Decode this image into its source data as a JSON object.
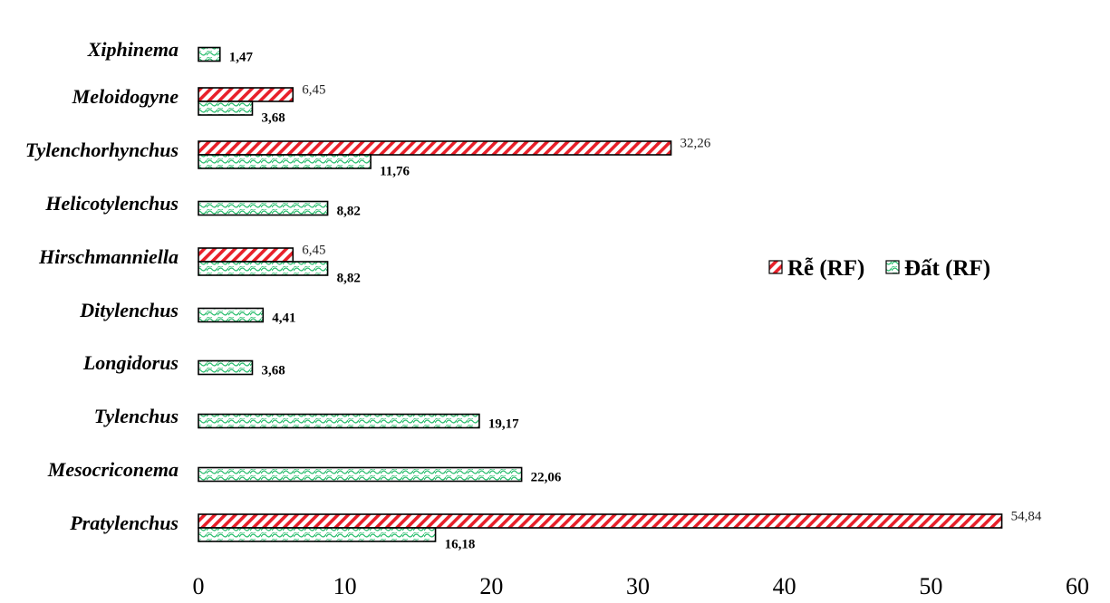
{
  "chart_data": {
    "type": "bar",
    "orientation": "horizontal",
    "categories": [
      "Xiphinema",
      "Meloidogyne",
      "Tylenchorhynchus",
      "Helicotylenchus",
      "Hirschmanniella",
      "Ditylenchus",
      "Longidorus",
      "Tylenchus",
      "Mesocriconema",
      "Pratylenchus"
    ],
    "series": [
      {
        "name": "Rễ (RF)",
        "values": [
          null,
          6.45,
          32.26,
          null,
          6.45,
          null,
          null,
          null,
          null,
          54.84
        ],
        "labels": [
          "",
          "6,45",
          "32,26",
          "",
          "6,45",
          "",
          "",
          "",
          "",
          "54,84"
        ],
        "color": "#e8202a"
      },
      {
        "name": "Đất (RF)",
        "values": [
          1.47,
          3.68,
          11.76,
          8.82,
          8.82,
          4.41,
          3.68,
          19.17,
          22.06,
          16.18
        ],
        "labels": [
          "1,47",
          "3,68",
          "11,76",
          "8,82",
          "8,82",
          "4,41",
          "3,68",
          "19,17",
          "22,06",
          "16,18"
        ],
        "color": "#2fbf71"
      }
    ],
    "xlim": [
      0,
      60
    ],
    "xticks": [
      "0",
      "10",
      "20",
      "30",
      "40",
      "50",
      "60"
    ],
    "title": "",
    "xlabel": "",
    "ylabel": "",
    "grid": false,
    "legend_position": "right"
  }
}
